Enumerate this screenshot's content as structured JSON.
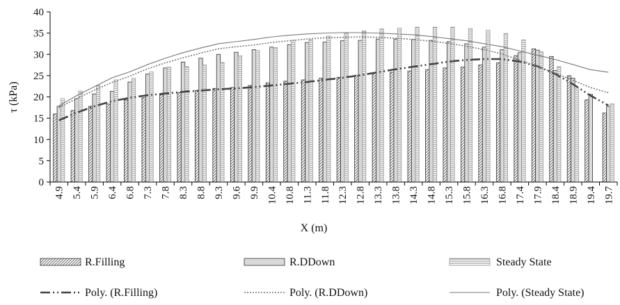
{
  "chart_data": {
    "type": "bar",
    "xlabel": "X (m)",
    "ylabel": "τ (kPa)",
    "ylim": [
      0,
      40
    ],
    "yticks": [
      "0",
      "5",
      "10",
      "15",
      "20",
      "25",
      "30",
      "35",
      "40"
    ],
    "grid": false,
    "legend_position": "bottom",
    "categories": [
      "4.9",
      "5.4",
      "5.9",
      "6.4",
      "6.8",
      "7.3",
      "7.8",
      "8.3",
      "8.8",
      "9.3",
      "9.6",
      "9.9",
      "10.4",
      "10.8",
      "11.3",
      "11.8",
      "12.3",
      "12.8",
      "13.3",
      "13.8",
      "14.3",
      "14.8",
      "15.3",
      "15.8",
      "16.3",
      "16.8",
      "17.4",
      "17.9",
      "18.4",
      "18.9",
      "19.4",
      "19.7"
    ],
    "series": [
      {
        "name": "R.Filling",
        "pattern": "diagonal",
        "values": [
          16.0,
          16.8,
          17.8,
          18.3,
          19.3,
          19.8,
          20.5,
          21.0,
          21.5,
          22.0,
          22.2,
          22.7,
          23.3,
          23.7,
          24.0,
          24.4,
          24.6,
          25.1,
          25.6,
          25.8,
          26.1,
          26.4,
          26.8,
          27.0,
          27.5,
          28.0,
          29.7,
          31.3,
          29.5,
          25.0,
          19.3,
          16.2
        ]
      },
      {
        "name": "R.DDown",
        "pattern": "solid",
        "values": [
          17.8,
          19.6,
          20.7,
          21.3,
          23.5,
          25.4,
          26.8,
          28.2,
          29.1,
          30.0,
          30.5,
          31.1,
          31.7,
          32.3,
          32.8,
          32.9,
          33.2,
          33.3,
          33.6,
          33.6,
          33.5,
          33.3,
          33.0,
          32.5,
          31.7,
          31.1,
          30.4,
          31.0,
          26.2,
          24.4,
          20.6,
          17.8
        ]
      },
      {
        "name": "Steady State",
        "pattern": "horizontal",
        "values": [
          19.6,
          21.4,
          22.7,
          24.0,
          24.4,
          25.9,
          27.0,
          27.1,
          27.5,
          28.1,
          29.7,
          30.9,
          31.6,
          33.3,
          33.4,
          34.3,
          35.0,
          35.5,
          36.0,
          36.2,
          36.4,
          36.4,
          36.4,
          36.1,
          35.7,
          34.9,
          33.4,
          30.6,
          27.1,
          21.9,
          0,
          18.4
        ]
      }
    ],
    "trendlines": [
      {
        "name": "Poly. (R.Filling)",
        "style": "long-dash-dot-dot",
        "values": [
          14.5,
          16.3,
          17.8,
          19.0,
          19.8,
          20.4,
          20.8,
          21.2,
          21.5,
          21.8,
          22.0,
          22.3,
          22.7,
          23.1,
          23.5,
          24.0,
          24.5,
          25.1,
          25.8,
          26.5,
          27.1,
          27.7,
          28.3,
          28.7,
          28.9,
          28.9,
          28.3,
          27.2,
          25.4,
          23.0,
          20.3,
          18.0
        ]
      },
      {
        "name": "Poly. (R.DDown)",
        "style": "dotted",
        "values": [
          17.5,
          19.6,
          21.6,
          23.4,
          24.9,
          26.6,
          28.0,
          29.2,
          30.3,
          31.3,
          31.8,
          32.2,
          32.8,
          33.2,
          33.6,
          33.9,
          34.0,
          34.1,
          34.0,
          33.8,
          33.5,
          33.1,
          32.6,
          31.9,
          31.1,
          30.1,
          28.6,
          27.2,
          25.6,
          23.9,
          22.2,
          21.0
        ]
      },
      {
        "name": "Poly. (Steady State)",
        "style": "solid",
        "values": [
          17.9,
          20.3,
          22.4,
          24.5,
          25.9,
          27.6,
          29.1,
          30.4,
          31.5,
          32.5,
          33.0,
          33.5,
          34.1,
          34.5,
          34.8,
          35.0,
          35.1,
          35.1,
          35.0,
          34.8,
          34.6,
          34.2,
          33.7,
          33.2,
          32.5,
          31.8,
          30.8,
          29.8,
          28.8,
          27.6,
          26.4,
          25.8
        ]
      }
    ]
  }
}
